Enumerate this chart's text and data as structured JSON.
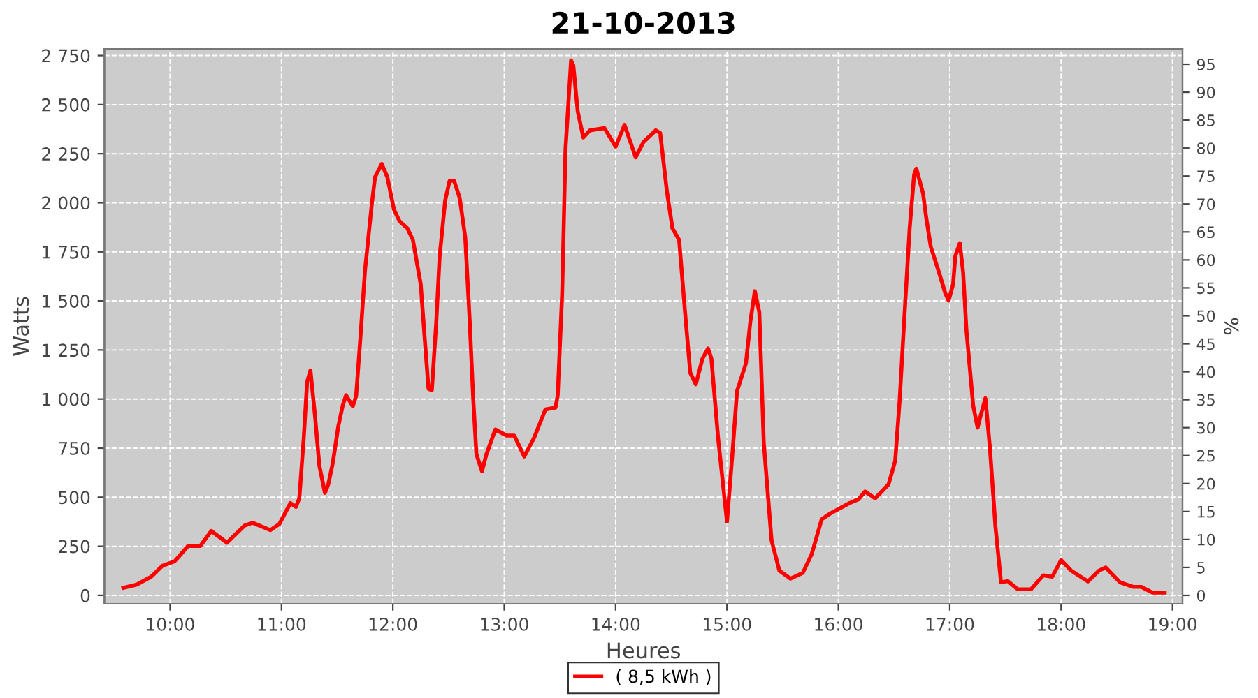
{
  "chart_data": {
    "type": "line",
    "title": "21-10-2013",
    "xlabel": "Heures",
    "ylabel": "Watts",
    "y2label": "%",
    "series": [
      {
        "name": "( 8,5 kWh )",
        "color": "#ff0000",
        "x": [
          9.58,
          9.7,
          9.83,
          9.93,
          10.04,
          10.16,
          10.27,
          10.37,
          10.51,
          10.67,
          10.74,
          10.9,
          10.98,
          11.08,
          11.13,
          11.16,
          11.2,
          11.23,
          11.26,
          11.3,
          11.34,
          11.39,
          11.42,
          11.46,
          11.51,
          11.55,
          11.58,
          11.64,
          11.67,
          11.71,
          11.75,
          11.81,
          11.84,
          11.9,
          11.95,
          12.01,
          12.06,
          12.13,
          12.18,
          12.25,
          12.29,
          12.32,
          12.35,
          12.39,
          12.42,
          12.47,
          12.51,
          12.55,
          12.6,
          12.65,
          12.69,
          12.72,
          12.75,
          12.8,
          12.84,
          12.92,
          13.02,
          13.09,
          13.18,
          13.27,
          13.37,
          13.46,
          13.48,
          13.52,
          13.55,
          13.6,
          13.62,
          13.66,
          13.71,
          13.77,
          13.9,
          14.0,
          14.08,
          14.18,
          14.25,
          14.36,
          14.4,
          14.46,
          14.51,
          14.57,
          14.63,
          14.67,
          14.72,
          14.78,
          14.83,
          14.86,
          14.92,
          15.0,
          15.05,
          15.09,
          15.17,
          15.21,
          15.25,
          15.29,
          15.33,
          15.4,
          15.47,
          15.57,
          15.68,
          15.76,
          15.85,
          15.93,
          16.1,
          16.18,
          16.24,
          16.33,
          16.45,
          16.51,
          16.55,
          16.6,
          16.64,
          16.68,
          16.7,
          16.76,
          16.79,
          16.83,
          16.91,
          16.96,
          16.99,
          17.03,
          17.05,
          17.09,
          17.12,
          17.15,
          17.21,
          17.25,
          17.28,
          17.32,
          17.36,
          17.41,
          17.46,
          17.52,
          17.61,
          17.73,
          17.84,
          17.92,
          18.0,
          18.09,
          18.24,
          18.34,
          18.4,
          18.53,
          18.65,
          18.72,
          18.82,
          18.93
        ],
        "values": [
          38,
          55,
          95,
          150,
          173,
          251,
          251,
          328,
          268,
          356,
          370,
          332,
          363,
          470,
          451,
          494,
          802,
          1087,
          1146,
          921,
          660,
          522,
          565,
          672,
          861,
          968,
          1020,
          963,
          1015,
          1324,
          1657,
          1989,
          2131,
          2198,
          2131,
          1965,
          1906,
          1870,
          1811,
          1585,
          1277,
          1052,
          1045,
          1396,
          1728,
          2013,
          2112,
          2112,
          2024,
          1823,
          1396,
          1016,
          719,
          632,
          719,
          845,
          814,
          814,
          707,
          805,
          947,
          956,
          1018,
          1538,
          2274,
          2725,
          2700,
          2464,
          2333,
          2369,
          2380,
          2286,
          2397,
          2231,
          2309,
          2369,
          2355,
          2060,
          1870,
          1811,
          1396,
          1134,
          1075,
          1206,
          1258,
          1206,
          802,
          375,
          731,
          1040,
          1182,
          1396,
          1550,
          1443,
          778,
          280,
          126,
          85,
          114,
          209,
          387,
          418,
          470,
          489,
          529,
          494,
          565,
          684,
          992,
          1490,
          1870,
          2143,
          2174,
          2048,
          1918,
          1775,
          1633,
          1538,
          1502,
          1585,
          1728,
          1794,
          1645,
          1348,
          968,
          854,
          921,
          1004,
          755,
          351,
          66,
          73,
          31,
          31,
          102,
          95,
          180,
          126,
          71,
          126,
          142,
          66,
          43,
          43,
          14,
          14
        ]
      }
    ],
    "xlim": [
      9.41,
      19.09
    ],
    "xticks": [
      {
        "value": 10,
        "label": "10:00"
      },
      {
        "value": 11,
        "label": "11:00"
      },
      {
        "value": 12,
        "label": "12:00"
      },
      {
        "value": 13,
        "label": "13:00"
      },
      {
        "value": 14,
        "label": "14:00"
      },
      {
        "value": 15,
        "label": "15:00"
      },
      {
        "value": 16,
        "label": "16:00"
      },
      {
        "value": 17,
        "label": "17:00"
      },
      {
        "value": 18,
        "label": "18:00"
      },
      {
        "value": 19,
        "label": "19:00"
      }
    ],
    "ylim": [
      -43,
      2784
    ],
    "yticks": [
      0,
      250,
      500,
      750,
      {
        "value": 1000,
        "label": "1 000"
      },
      {
        "value": 1250,
        "label": "1 250"
      },
      {
        "value": 1500,
        "label": "1 500"
      },
      {
        "value": 1750,
        "label": "1 750"
      },
      {
        "value": 2000,
        "label": "2 000"
      },
      {
        "value": 2250,
        "label": "2 250"
      },
      {
        "value": 2500,
        "label": "2 500"
      },
      {
        "value": 2750,
        "label": "2 750"
      }
    ],
    "y2lim": [
      -1.5,
      97.75
    ],
    "y2ticks": [
      0,
      5,
      10,
      15,
      20,
      25,
      30,
      35,
      40,
      45,
      50,
      55,
      60,
      65,
      70,
      75,
      80,
      85,
      90,
      95
    ],
    "grid": true,
    "legend": "bottom",
    "marker": "none",
    "line_style": "solid"
  }
}
